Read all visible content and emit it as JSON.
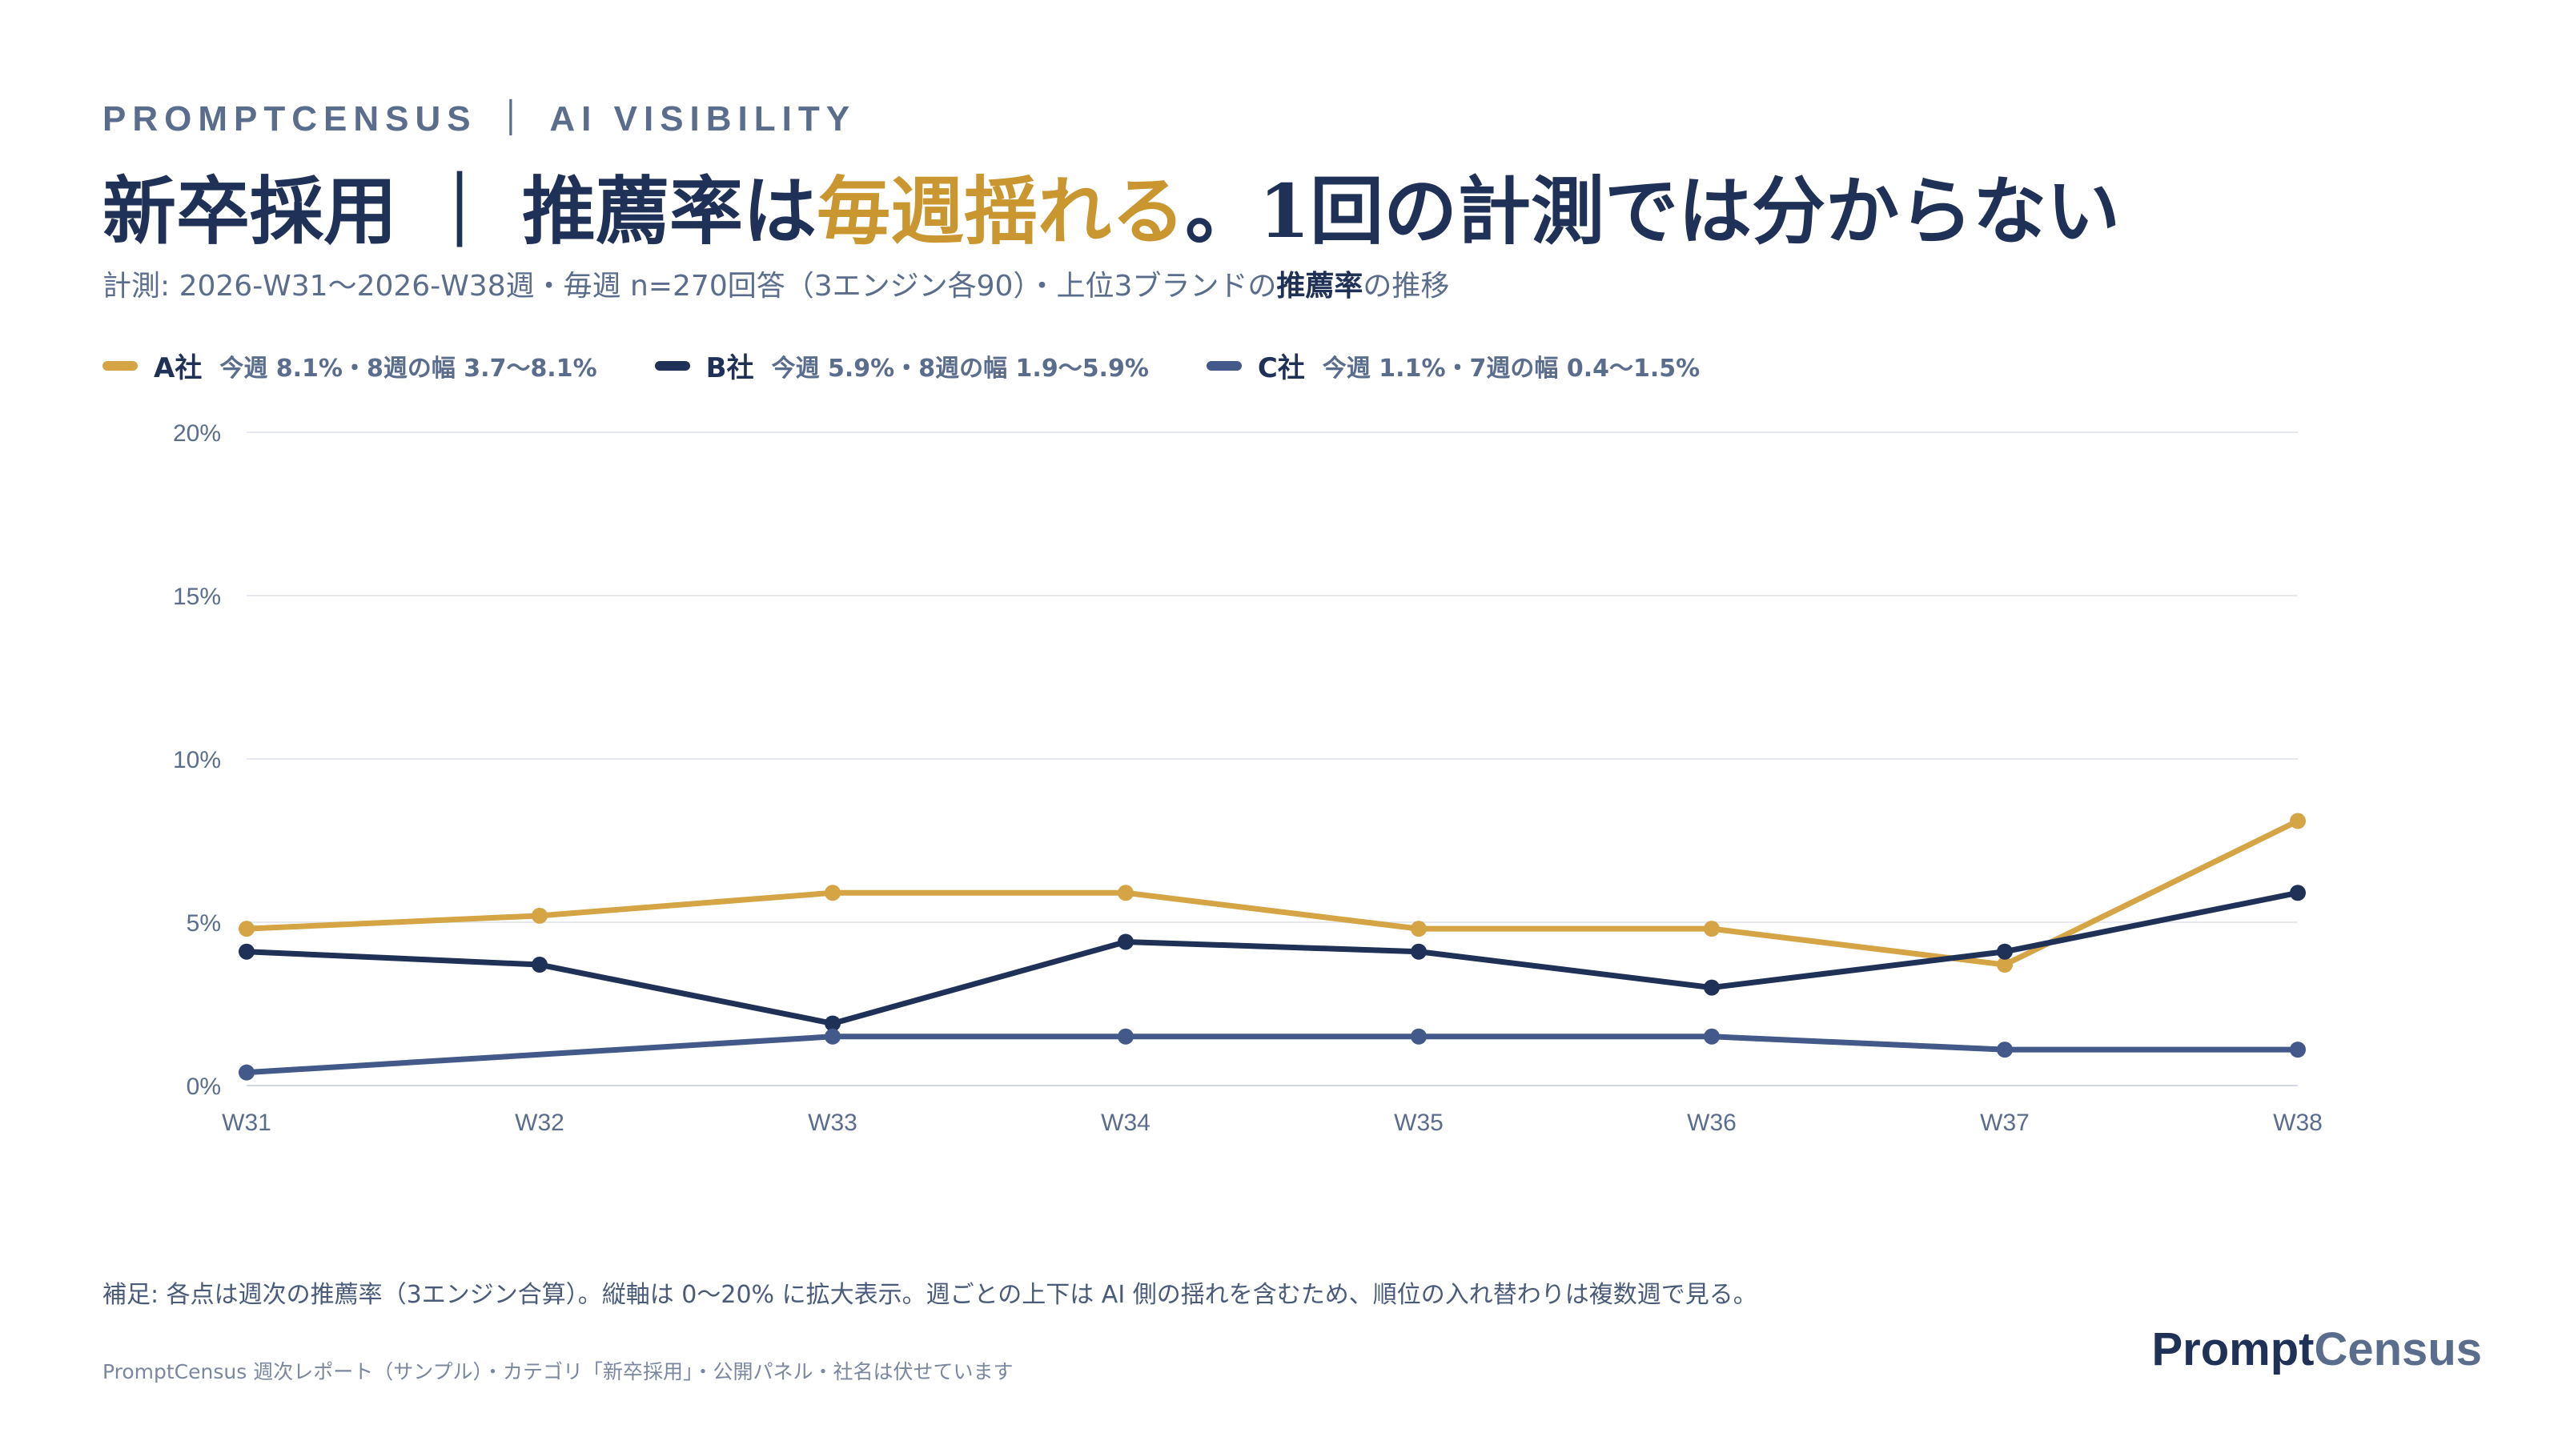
{
  "header": {
    "kicker": "PROMPTCENSUS ｜ AI VISIBILITY",
    "title_part1": "新卒採用 ｜ 推薦率は",
    "title_highlight": "毎週揺れる",
    "title_part2": "。1回の計測では分からない",
    "subtitle_part1": "計測: 2026-W31〜2026-W38週・毎週 n=270回答（3エンジン各90）・上位3ブランドの",
    "subtitle_bold": "推薦率",
    "subtitle_part2": "の推移"
  },
  "legend": [
    {
      "name": "A社",
      "desc": "今週 8.1%・8週の幅 3.7〜8.1%",
      "color": "#d4a445"
    },
    {
      "name": "B社",
      "desc": "今週 5.9%・8週の幅 1.9〜5.9%",
      "color": "#1f3157"
    },
    {
      "name": "C社",
      "desc": "今週 1.1%・7週の幅 0.4〜1.5%",
      "color": "#43598a"
    }
  ],
  "chart_data": {
    "type": "line",
    "x": [
      "W31",
      "W32",
      "W33",
      "W34",
      "W35",
      "W36",
      "W37",
      "W38"
    ],
    "ylim": [
      0,
      20
    ],
    "yticks": [
      0,
      5,
      10,
      15,
      20
    ],
    "ytick_labels": [
      "0%",
      "5%",
      "10%",
      "15%",
      "20%"
    ],
    "grid": true,
    "legend_position": "top-left",
    "series": [
      {
        "name": "A社",
        "color": "#d4a445",
        "values": [
          4.8,
          5.2,
          5.9,
          5.9,
          4.8,
          4.8,
          3.7,
          8.1
        ]
      },
      {
        "name": "B社",
        "color": "#1f3157",
        "values": [
          4.1,
          3.7,
          1.9,
          4.4,
          4.1,
          3.0,
          4.1,
          5.9
        ]
      },
      {
        "name": "C社",
        "color": "#43598a",
        "values": [
          0.4,
          null,
          1.5,
          1.5,
          1.5,
          1.5,
          1.1,
          1.1
        ]
      }
    ]
  },
  "note": "補足: 各点は週次の推薦率（3エンジン合算）。縦軸は 0〜20% に拡大表示。週ごとの上下は AI 側の揺れを含むため、順位の入れ替わりは複数週で見る。",
  "footer": "PromptCensus 週次レポート（サンプル）・カテゴリ「新卒採用」・公開パネル・社名は伏せています",
  "brand": {
    "part1": "Prompt",
    "part2": "Census"
  }
}
